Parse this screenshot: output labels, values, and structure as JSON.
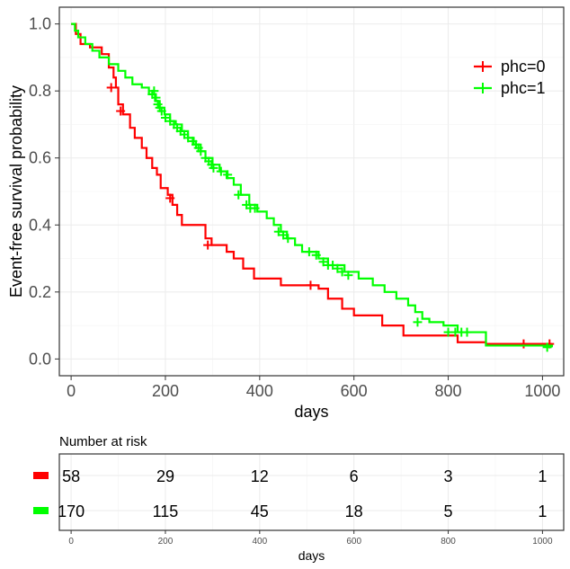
{
  "chart_data": {
    "type": "line",
    "subtype": "kaplan-meier step",
    "xlabel": "days",
    "ylabel": "Event-free survival probability",
    "xlim": [
      -25,
      1045
    ],
    "ylim": [
      -0.05,
      1.05
    ],
    "x_ticks": [
      0,
      200,
      400,
      600,
      800,
      1000
    ],
    "y_ticks": [
      0.0,
      0.2,
      0.4,
      0.6,
      0.8,
      1.0
    ],
    "y_tick_labels": [
      "0.0",
      "0.2",
      "0.4",
      "0.6",
      "0.8",
      "1.0"
    ],
    "grid": true,
    "legend_position": "top-right",
    "series": [
      {
        "name": "phc=0",
        "color": "#ff0000",
        "steps": [
          [
            0,
            1.0
          ],
          [
            10,
            0.97
          ],
          [
            20,
            0.94
          ],
          [
            40,
            0.93
          ],
          [
            65,
            0.91
          ],
          [
            80,
            0.87
          ],
          [
            90,
            0.84
          ],
          [
            95,
            0.81
          ],
          [
            100,
            0.76
          ],
          [
            110,
            0.73
          ],
          [
            125,
            0.69
          ],
          [
            135,
            0.66
          ],
          [
            150,
            0.63
          ],
          [
            160,
            0.6
          ],
          [
            172,
            0.57
          ],
          [
            182,
            0.55
          ],
          [
            190,
            0.51
          ],
          [
            205,
            0.49
          ],
          [
            215,
            0.46
          ],
          [
            225,
            0.43
          ],
          [
            235,
            0.4
          ],
          [
            285,
            0.36
          ],
          [
            298,
            0.34
          ],
          [
            330,
            0.32
          ],
          [
            345,
            0.3
          ],
          [
            365,
            0.27
          ],
          [
            388,
            0.24
          ],
          [
            445,
            0.22
          ],
          [
            525,
            0.21
          ],
          [
            545,
            0.18
          ],
          [
            575,
            0.15
          ],
          [
            600,
            0.13
          ],
          [
            660,
            0.1
          ],
          [
            705,
            0.07
          ],
          [
            820,
            0.05
          ],
          [
            880,
            0.045
          ],
          [
            1020,
            0.045
          ]
        ],
        "censored": [
          [
            85,
            0.81
          ],
          [
            105,
            0.74
          ],
          [
            210,
            0.48
          ],
          [
            290,
            0.34
          ],
          [
            508,
            0.22
          ],
          [
            960,
            0.045
          ],
          [
            1015,
            0.045
          ]
        ]
      },
      {
        "name": "phc=1",
        "color": "#00ff00",
        "steps": [
          [
            0,
            1.0
          ],
          [
            8,
            0.98
          ],
          [
            15,
            0.96
          ],
          [
            30,
            0.94
          ],
          [
            45,
            0.92
          ],
          [
            60,
            0.9
          ],
          [
            80,
            0.88
          ],
          [
            100,
            0.86
          ],
          [
            115,
            0.84
          ],
          [
            130,
            0.82
          ],
          [
            150,
            0.81
          ],
          [
            165,
            0.79
          ],
          [
            178,
            0.77
          ],
          [
            188,
            0.75
          ],
          [
            198,
            0.73
          ],
          [
            210,
            0.71
          ],
          [
            222,
            0.7
          ],
          [
            235,
            0.68
          ],
          [
            248,
            0.66
          ],
          [
            260,
            0.64
          ],
          [
            275,
            0.62
          ],
          [
            285,
            0.6
          ],
          [
            300,
            0.58
          ],
          [
            315,
            0.56
          ],
          [
            330,
            0.54
          ],
          [
            345,
            0.52
          ],
          [
            360,
            0.49
          ],
          [
            378,
            0.46
          ],
          [
            395,
            0.44
          ],
          [
            415,
            0.42
          ],
          [
            430,
            0.4
          ],
          [
            445,
            0.38
          ],
          [
            458,
            0.36
          ],
          [
            475,
            0.34
          ],
          [
            490,
            0.32
          ],
          [
            525,
            0.3
          ],
          [
            545,
            0.28
          ],
          [
            580,
            0.26
          ],
          [
            610,
            0.24
          ],
          [
            640,
            0.22
          ],
          [
            665,
            0.2
          ],
          [
            690,
            0.18
          ],
          [
            715,
            0.16
          ],
          [
            730,
            0.14
          ],
          [
            745,
            0.12
          ],
          [
            760,
            0.11
          ],
          [
            790,
            0.1
          ],
          [
            820,
            0.08
          ],
          [
            880,
            0.04
          ],
          [
            1020,
            0.035
          ]
        ],
        "censored": [
          [
            172,
            0.79
          ],
          [
            176,
            0.8
          ],
          [
            180,
            0.78
          ],
          [
            184,
            0.76
          ],
          [
            188,
            0.75
          ],
          [
            192,
            0.74
          ],
          [
            200,
            0.72
          ],
          [
            210,
            0.71
          ],
          [
            218,
            0.7
          ],
          [
            225,
            0.69
          ],
          [
            232,
            0.68
          ],
          [
            240,
            0.67
          ],
          [
            248,
            0.66
          ],
          [
            258,
            0.65
          ],
          [
            265,
            0.64
          ],
          [
            270,
            0.63
          ],
          [
            275,
            0.62
          ],
          [
            285,
            0.6
          ],
          [
            292,
            0.59
          ],
          [
            298,
            0.58
          ],
          [
            302,
            0.57
          ],
          [
            318,
            0.56
          ],
          [
            332,
            0.55
          ],
          [
            355,
            0.49
          ],
          [
            372,
            0.46
          ],
          [
            380,
            0.45
          ],
          [
            390,
            0.45
          ],
          [
            440,
            0.38
          ],
          [
            450,
            0.37
          ],
          [
            460,
            0.36
          ],
          [
            505,
            0.32
          ],
          [
            520,
            0.31
          ],
          [
            535,
            0.29
          ],
          [
            545,
            0.28
          ],
          [
            555,
            0.28
          ],
          [
            565,
            0.27
          ],
          [
            575,
            0.26
          ],
          [
            588,
            0.25
          ],
          [
            735,
            0.11
          ],
          [
            800,
            0.08
          ],
          [
            815,
            0.08
          ],
          [
            828,
            0.08
          ],
          [
            840,
            0.08
          ],
          [
            1010,
            0.035
          ]
        ]
      }
    ]
  },
  "risk_table": {
    "title": "Number at risk",
    "x_ticks": [
      0,
      200,
      400,
      600,
      800,
      1000
    ],
    "xlabel": "days",
    "rows": [
      {
        "name": "phc=0",
        "color": "#ff0000",
        "values": [
          "58",
          "29",
          "12",
          "6",
          "3",
          "1"
        ]
      },
      {
        "name": "phc=1",
        "color": "#00ff00",
        "values": [
          "170",
          "115",
          "45",
          "18",
          "5",
          "1"
        ]
      }
    ]
  }
}
